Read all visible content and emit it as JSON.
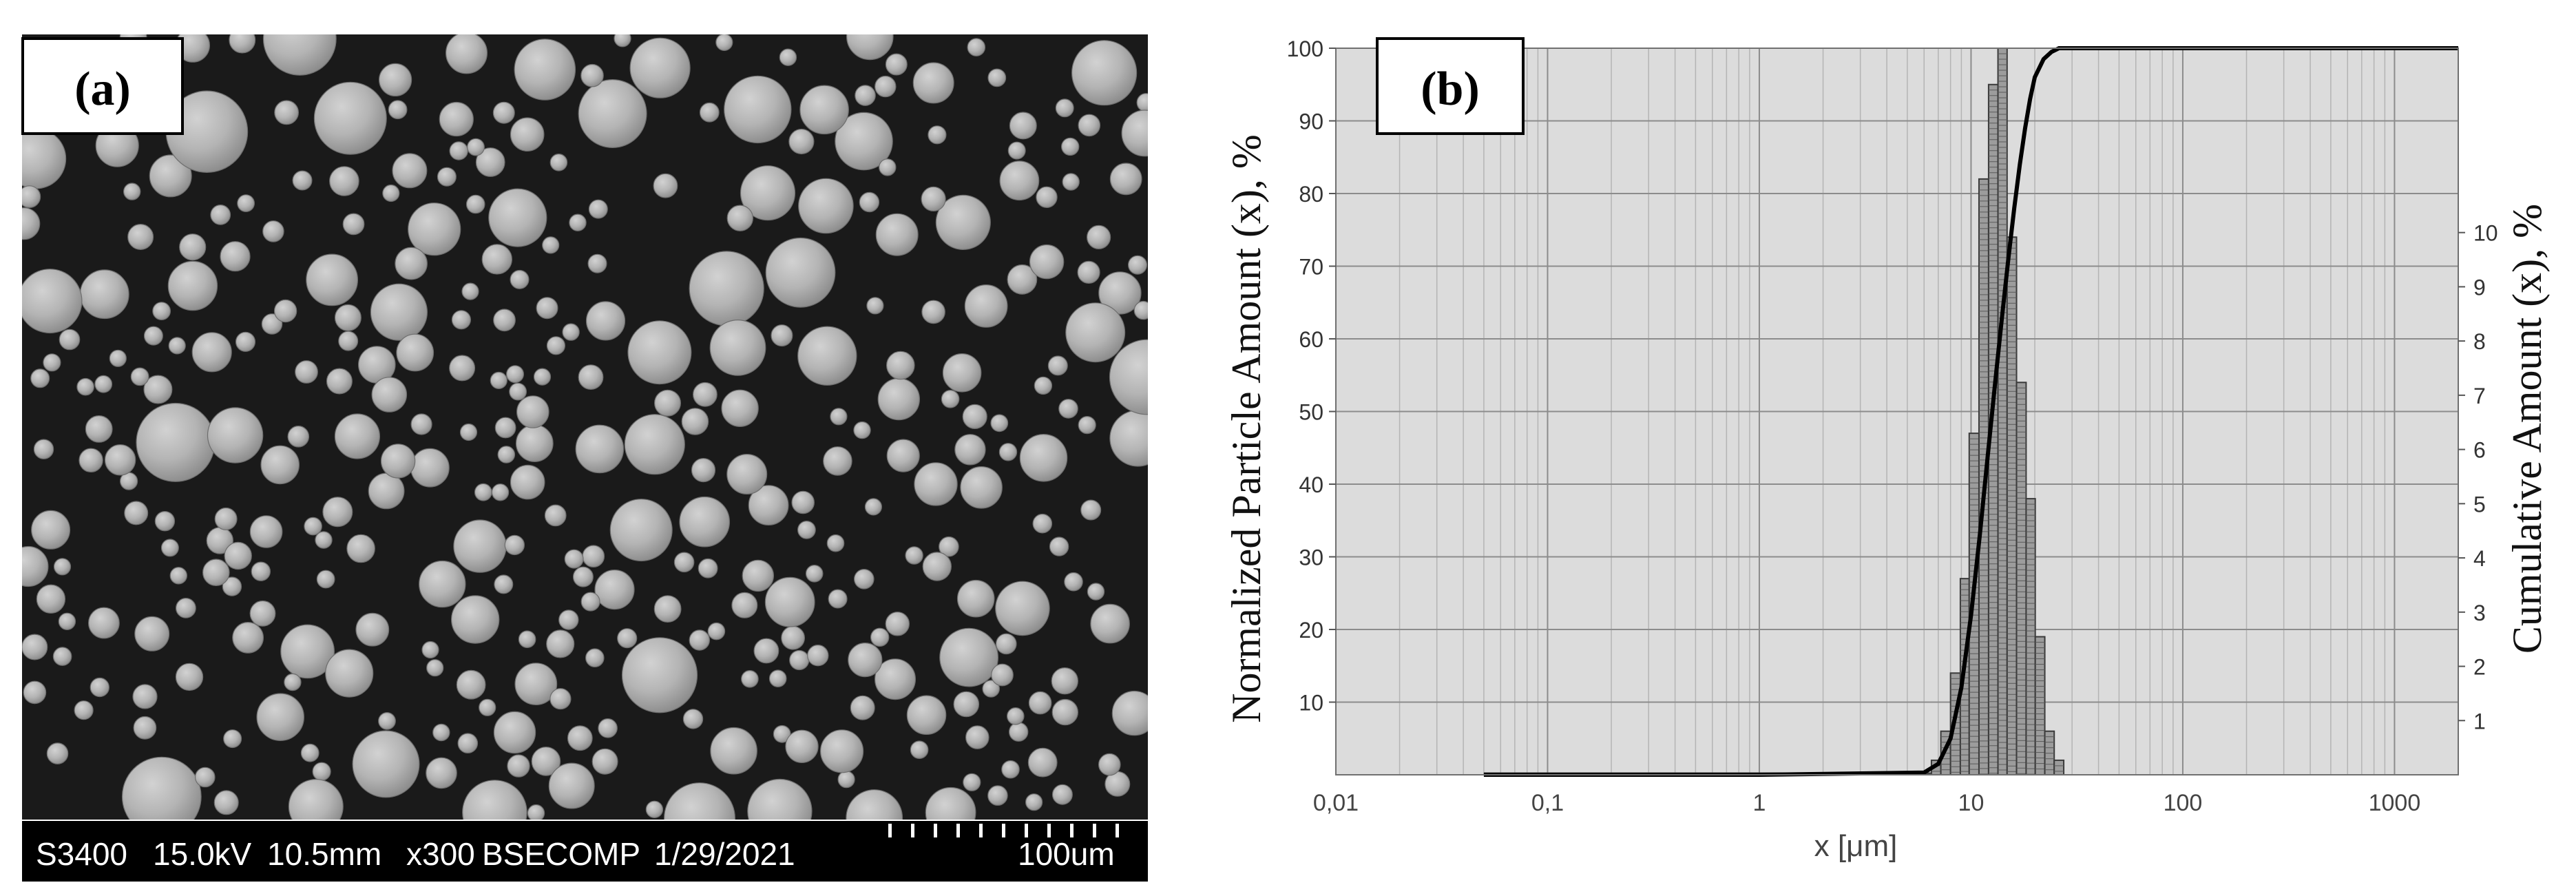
{
  "panel_a": {
    "label": "(a)",
    "info_bar": {
      "instrument": "S3400",
      "voltage": "15.0kV",
      "working_distance": "10.5mm",
      "magnification": "x300",
      "detector": "BSECOMP",
      "date": "1/29/2021",
      "scale": "100um"
    }
  },
  "panel_b": {
    "label": "(b)"
  },
  "chart_data": {
    "type": "bar",
    "title": "",
    "xlabel": "x [μm]",
    "ylabel": "Normalized Particle Amount (x), %",
    "y2label": "Cumulative Amount (x), %",
    "x_scale": "log",
    "xlim": [
      0.01,
      2000
    ],
    "ylim": [
      0,
      100
    ],
    "y2lim": [
      0,
      13.4
    ],
    "x_ticks": [
      0.01,
      0.1,
      1,
      10,
      100,
      1000
    ],
    "x_tick_labels": [
      "0,01",
      "0,1",
      "1",
      "10",
      "100",
      "1000"
    ],
    "y_ticks": [
      10,
      20,
      30,
      40,
      50,
      60,
      70,
      80,
      90,
      100
    ],
    "y2_ticks": [
      1,
      2,
      3,
      4,
      5,
      6,
      7,
      8,
      9,
      10
    ],
    "grid": true,
    "series": [
      {
        "kind": "histogram",
        "bins": [
          {
            "x0": 6.5,
            "x1": 7.2,
            "y": 2
          },
          {
            "x0": 7.2,
            "x1": 8.0,
            "y": 6
          },
          {
            "x0": 8.0,
            "x1": 8.9,
            "y": 14
          },
          {
            "x0": 8.9,
            "x1": 9.8,
            "y": 27
          },
          {
            "x0": 9.8,
            "x1": 10.9,
            "y": 47
          },
          {
            "x0": 10.9,
            "x1": 12.1,
            "y": 82
          },
          {
            "x0": 12.1,
            "x1": 13.4,
            "y": 95
          },
          {
            "x0": 13.4,
            "x1": 14.8,
            "y": 100
          },
          {
            "x0": 14.8,
            "x1": 16.4,
            "y": 74
          },
          {
            "x0": 16.4,
            "x1": 18.2,
            "y": 54
          },
          {
            "x0": 18.2,
            "x1": 20.1,
            "y": 38
          },
          {
            "x0": 20.1,
            "x1": 22.3,
            "y": 19
          },
          {
            "x0": 22.3,
            "x1": 24.7,
            "y": 6
          },
          {
            "x0": 24.7,
            "x1": 27.4,
            "y": 2
          }
        ]
      },
      {
        "kind": "cumulative",
        "x": [
          0.05,
          0.1,
          1,
          6.0,
          7.0,
          8.0,
          9.0,
          10.0,
          11.0,
          12.0,
          13.0,
          14.0,
          15.0,
          16.0,
          17.0,
          18.0,
          19.0,
          20.0,
          22.0,
          24.0,
          26.0,
          28.0,
          30.0,
          100,
          1000,
          2000
        ],
        "y": [
          0,
          0,
          0,
          0.3,
          1.5,
          5,
          12,
          22,
          33,
          44,
          54,
          63,
          71,
          78,
          84,
          89,
          93,
          96,
          98.5,
          99.5,
          100,
          100,
          100,
          100,
          100,
          100
        ]
      }
    ]
  }
}
